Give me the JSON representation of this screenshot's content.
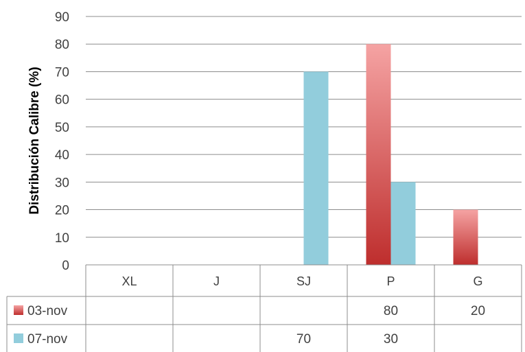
{
  "chart_data": {
    "type": "bar",
    "categories": [
      "XL",
      "J",
      "SJ",
      "P",
      "G"
    ],
    "series": [
      {
        "name": "03-nov",
        "values": [
          null,
          null,
          null,
          80,
          20
        ],
        "color_light": "#F2A0A0",
        "color_dark": "#C0302F"
      },
      {
        "name": "07-nov",
        "values": [
          null,
          null,
          70,
          30,
          null
        ],
        "color": "#92CDDC"
      }
    ],
    "xlabel": "",
    "ylabel": "Distribución Calibre (%)",
    "ylim": [
      0,
      90
    ],
    "yticks": [
      0,
      10,
      20,
      30,
      40,
      50,
      60,
      70,
      80,
      90
    ],
    "grid": true,
    "legend": "data-table",
    "data_table": true
  }
}
